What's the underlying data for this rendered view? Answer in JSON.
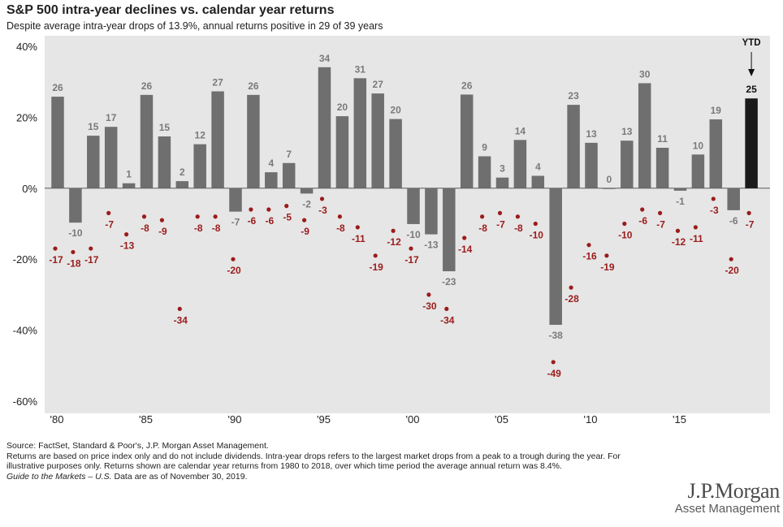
{
  "title": "S&P 500 intra-year declines vs. calendar year returns",
  "subtitle": "Despite average intra-year drops of 13.9%, annual returns positive in 29 of 39 years",
  "footnotes": {
    "source": "Source: FactSet, Standard & Poor's, J.P. Morgan Asset Management.",
    "note": "Returns are based on price index only and do not include dividends. Intra-year drops refers to the largest market drops from a peak to a trough during the year. For illustrative purposes only. Returns shown are calendar year returns from 1980 to 2018, over which time period the average annual return was 8.4%.",
    "guide_title": "Guide to the Markets – U.S.",
    "guide_rest": " Data are as of November 30, 2019."
  },
  "logo": {
    "main": "J.P.Morgan",
    "sub": "Asset Management"
  },
  "colors": {
    "bar": "#6f6f6f",
    "ytd_bar": "#1a1a1a",
    "dot": "#9b1b1b",
    "bar_label": "#7a7a7a",
    "plot_bg": "#e6e6e6"
  },
  "chart_data": {
    "type": "bar",
    "ylim": [
      -60,
      40
    ],
    "y_ticks": [
      40,
      20,
      0,
      -20,
      -40,
      -60
    ],
    "y_tick_labels": [
      "40%",
      "20%",
      "0%",
      "-20%",
      "-40%",
      "-60%"
    ],
    "x_tick_years": [
      1980,
      1985,
      1990,
      1995,
      2000,
      2005,
      2010,
      2015
    ],
    "x_tick_labels": [
      "'80",
      "'85",
      "'90",
      "'95",
      "'00",
      "'05",
      "'10",
      "'15"
    ],
    "ytd_label": "YTD",
    "years": [
      1980,
      1981,
      1982,
      1983,
      1984,
      1985,
      1986,
      1987,
      1988,
      1989,
      1990,
      1991,
      1992,
      1993,
      1994,
      1995,
      1996,
      1997,
      1998,
      1999,
      2000,
      2001,
      2002,
      2003,
      2004,
      2005,
      2006,
      2007,
      2008,
      2009,
      2010,
      2011,
      2012,
      2013,
      2014,
      2015,
      2016,
      2017,
      2018,
      2019
    ],
    "series": [
      {
        "name": "Calendar year returns",
        "values": [
          25.8,
          -9.7,
          14.8,
          17.3,
          1.4,
          26.3,
          14.6,
          2.0,
          12.4,
          27.3,
          -6.6,
          26.3,
          4.5,
          7.1,
          -1.5,
          34.1,
          20.3,
          31.0,
          26.7,
          19.5,
          -10.1,
          -13.0,
          -23.4,
          26.4,
          9.0,
          3.0,
          13.6,
          3.5,
          -38.5,
          23.5,
          12.8,
          0.0,
          13.4,
          29.6,
          11.4,
          -0.7,
          9.5,
          19.4,
          -6.2,
          25.3
        ],
        "labels": [
          "26",
          "-10",
          "15",
          "17",
          "1",
          "26",
          "15",
          "2",
          "12",
          "27",
          "-7",
          "26",
          "4",
          "7",
          "-2",
          "34",
          "20",
          "31",
          "27",
          "20",
          "-10",
          "-13",
          "-23",
          "26",
          "9",
          "3",
          "14",
          "4",
          "-38",
          "23",
          "13",
          "0",
          "13",
          "30",
          "11",
          "-1",
          "10",
          "19",
          "-6",
          "25"
        ]
      },
      {
        "name": "Intra-year declines",
        "values": [
          -17,
          -18,
          -17,
          -7,
          -13,
          -8,
          -9,
          -34,
          -8,
          -8,
          -20,
          -6,
          -6,
          -5,
          -9,
          -3,
          -8,
          -11,
          -19,
          -12,
          -17,
          -30,
          -34,
          -14,
          -8,
          -7,
          -8,
          -10,
          -49,
          -28,
          -16,
          -19,
          -10,
          -6,
          -7,
          -12,
          -11,
          -3,
          -20,
          -7
        ],
        "labels": [
          "-17",
          "-18",
          "-17",
          "-7",
          "-13",
          "-8",
          "-9",
          "-34",
          "-8",
          "-8",
          "-20",
          "-6",
          "-6",
          "-5",
          "-9",
          "-3",
          "-8",
          "-11",
          "-19",
          "-12",
          "-17",
          "-30",
          "-34",
          "-14",
          "-8",
          "-7",
          "-8",
          "-10",
          "-49",
          "-28",
          "-16",
          "-19",
          "-10",
          "-6",
          "-7",
          "-12",
          "-11",
          "-3",
          "-20",
          "-7"
        ]
      }
    ]
  }
}
